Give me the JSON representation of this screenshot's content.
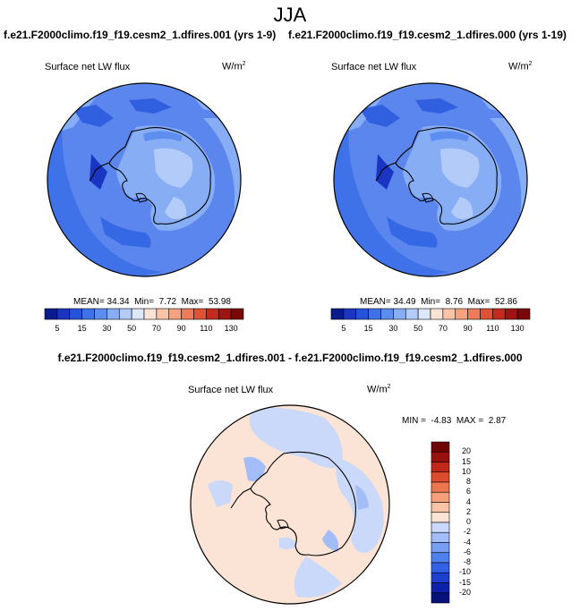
{
  "season_title": "JJA",
  "panel_top_left": {
    "run_label": "f.e21.F2000climo.f19_f19.cesm2_1.dfires.001 (yrs 1-9)",
    "variable": "Surface net LW flux",
    "units_base": "W/m",
    "units_exp": "2",
    "mean_label": "MEAN=",
    "mean": "34.34",
    "min_label": "Min=",
    "min": "7.72",
    "max_label": "Max=",
    "max": "53.98"
  },
  "panel_top_right": {
    "run_label": "f.e21.F2000climo.f19_f19.cesm2_1.dfires.000 (yrs 1-19)",
    "variable": "Surface net LW flux",
    "units_base": "W/m",
    "units_exp": "2",
    "mean_label": "MEAN=",
    "mean": "34.49",
    "min_label": "Min=",
    "min": "8.76",
    "max_label": "Max=",
    "max": "52.86"
  },
  "panel_bottom": {
    "diff_label": "f.e21.F2000climo.f19_f19.cesm2_1.dfires.001 - f.e21.F2000climo.f19_f19.cesm2_1.dfires.000",
    "variable": "Surface net LW flux",
    "units_base": "W/m",
    "units_exp": "2",
    "min_label": "MIN =",
    "min": "-4.83",
    "max_label": "MAX =",
    "max": "2.87"
  },
  "chart_data": [
    {
      "type": "heatmap",
      "title": "Surface net LW flux",
      "subtitle": "f.e21.F2000climo.f19_f19.cesm2_1.dfires.001 (yrs 1-9)",
      "projection": "south-polar-stereographic",
      "units": "W/m2",
      "stats": {
        "mean": 34.34,
        "min": 7.72,
        "max": 53.98
      },
      "colorbar_levels": [
        5,
        10,
        15,
        20,
        30,
        40,
        50,
        60,
        70,
        80,
        90,
        100,
        110,
        120,
        130
      ],
      "colorbar_tick_labels": [
        "5",
        "15",
        "30",
        "50",
        "70",
        "90",
        "110",
        "130"
      ]
    },
    {
      "type": "heatmap",
      "title": "Surface net LW flux",
      "subtitle": "f.e21.F2000climo.f19_f19.cesm2_1.dfires.000 (yrs 1-19)",
      "projection": "south-polar-stereographic",
      "units": "W/m2",
      "stats": {
        "mean": 34.49,
        "min": 8.76,
        "max": 52.86
      },
      "colorbar_levels": [
        5,
        10,
        15,
        20,
        30,
        40,
        50,
        60,
        70,
        80,
        90,
        100,
        110,
        120,
        130
      ],
      "colorbar_tick_labels": [
        "5",
        "15",
        "30",
        "50",
        "70",
        "90",
        "110",
        "130"
      ]
    },
    {
      "type": "heatmap",
      "title": "Surface net LW flux",
      "subtitle": "f.e21.F2000climo.f19_f19.cesm2_1.dfires.001 - f.e21.F2000climo.f19_f19.cesm2_1.dfires.000",
      "projection": "south-polar-stereographic",
      "units": "W/m2",
      "stats": {
        "min": -4.83,
        "max": 2.87
      },
      "colorbar_levels": [
        -20,
        -15,
        -10,
        -8,
        -6,
        -4,
        -2,
        0,
        2,
        4,
        6,
        8,
        10,
        15,
        20
      ],
      "colorbar_tick_labels": [
        "20",
        "15",
        "10",
        "8",
        "6",
        "4",
        "2",
        "0",
        "-2",
        "-4",
        "-6",
        "-8",
        "-10",
        "-15",
        "-20"
      ]
    }
  ],
  "colors": {
    "top_scale": [
      "#0a1b8c",
      "#1a35c2",
      "#2653dc",
      "#3f72e8",
      "#5e8df0",
      "#87aef5",
      "#b3cbf8",
      "#dce7fb",
      "#fde3d6",
      "#fbc4a8",
      "#f6a27e",
      "#ee7b57",
      "#df5236",
      "#c42b1d",
      "#9e1410",
      "#7a0707"
    ],
    "diff_scale": [
      "#08107a",
      "#0d22a8",
      "#1d3fd0",
      "#3260e6",
      "#4f80ef",
      "#779ff4",
      "#a2bdf7",
      "#cad9fa",
      "#fbe3d5",
      "#f9c3a4",
      "#f5a07a",
      "#ec7650",
      "#dc4c2f",
      "#c12818",
      "#99110c",
      "#700505"
    ],
    "ocean_top": "#5b86ee",
    "ocean_diff": "#cad9fa",
    "land_diff": "#fbe3d5"
  }
}
